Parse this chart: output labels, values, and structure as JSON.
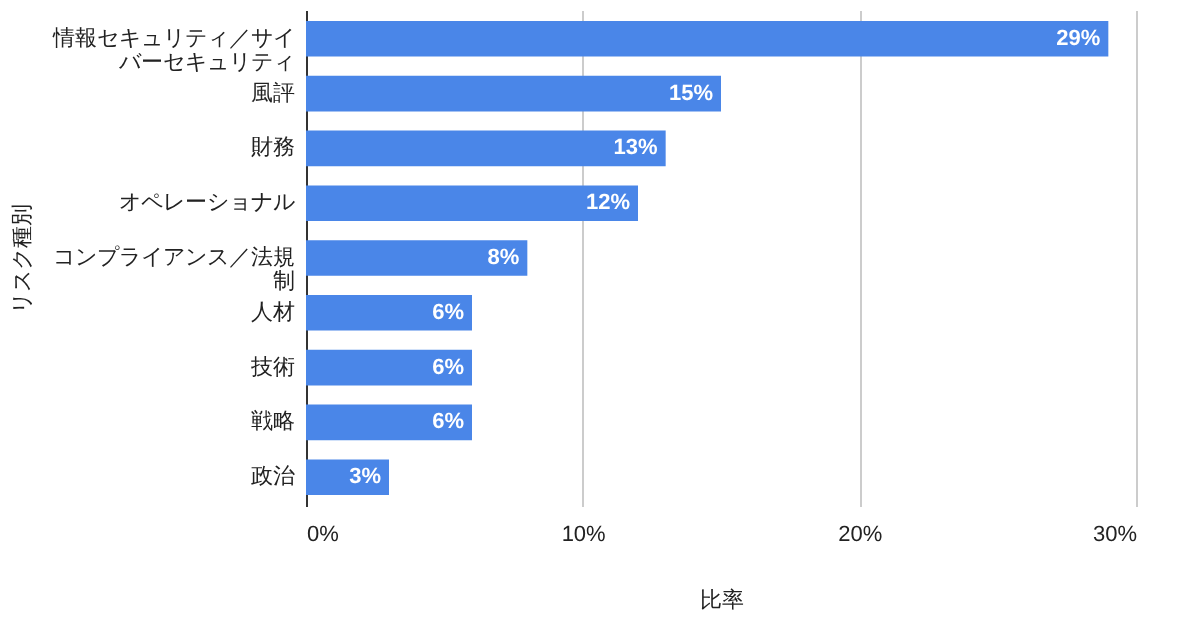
{
  "chart_data": {
    "type": "bar",
    "orientation": "horizontal",
    "xlabel": "比率",
    "ylabel": "リスク種別",
    "categories": [
      "情報セキュリティ／サイバーセキュリティ",
      "風評",
      "財務",
      "オペレーショナル",
      "コンプライアンス／法規制",
      "人材",
      "技術",
      "戦略",
      "政治"
    ],
    "values": [
      29,
      15,
      13,
      12,
      8,
      6,
      6,
      6,
      3
    ],
    "value_labels": [
      "29%",
      "15%",
      "13%",
      "12%",
      "8%",
      "6%",
      "6%",
      "6%",
      "3%"
    ],
    "color": "#4a86e8",
    "xlim": [
      0,
      30
    ],
    "xticks": [
      {
        "value": 0,
        "label": "0%"
      },
      {
        "value": 10,
        "label": "10%"
      },
      {
        "value": 20,
        "label": "20%"
      },
      {
        "value": 30,
        "label": "30%"
      }
    ],
    "grid": "x"
  }
}
